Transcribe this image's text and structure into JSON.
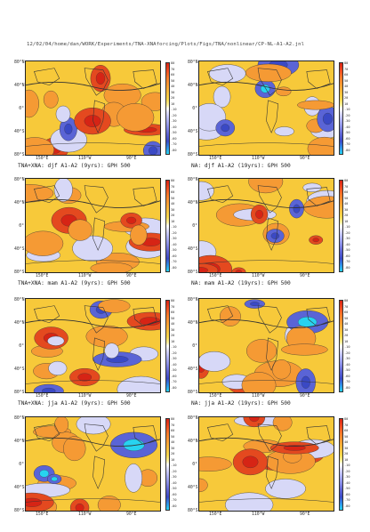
{
  "header_path": "12/02/04/home/dan/WORK/Experiments/TNA-XNAforcing/Plots/Figs/TNA/nonlinear/CP-NL-A1-A2.jnl",
  "lat_labels": [
    "80°N",
    "40°N",
    "0°",
    "40°S",
    "80°S"
  ],
  "lon_labels": [
    "150°E",
    "110°W",
    "90°E"
  ],
  "colorbar_ticks": [
    "80",
    "70",
    "60",
    "50",
    "40",
    "30",
    "20",
    "10",
    "-10",
    "-20",
    "-30",
    "-40",
    "-50",
    "-60",
    "-70",
    "-80"
  ],
  "colors": {
    "fill_base": "#f7c93a",
    "orange": "#f59a34",
    "red": "#e4491f",
    "light_blue": "#d7d8f7",
    "blue": "#5a64d6",
    "cyan": "#27d3f0",
    "land": "#333333"
  },
  "panels": [
    {
      "caption": "TNA+XNA: djf A1-A2 (9yrs): GPH 500"
    },
    {
      "caption": "NA: djf A1-A2 (19yrs): GPH 500"
    },
    {
      "caption": "TNA+XNA: mam A1-A2 (9yrs): GPH 500"
    },
    {
      "caption": "NA: mam A1-A2 (19yrs): GPH 500"
    },
    {
      "caption": "TNA+XNA: jja A1-A2 (9yrs): GPH 500"
    },
    {
      "caption": "NA: jja A1-A2 (19yrs): GPH 500"
    },
    {
      "caption": ""
    },
    {
      "caption": ""
    }
  ]
}
